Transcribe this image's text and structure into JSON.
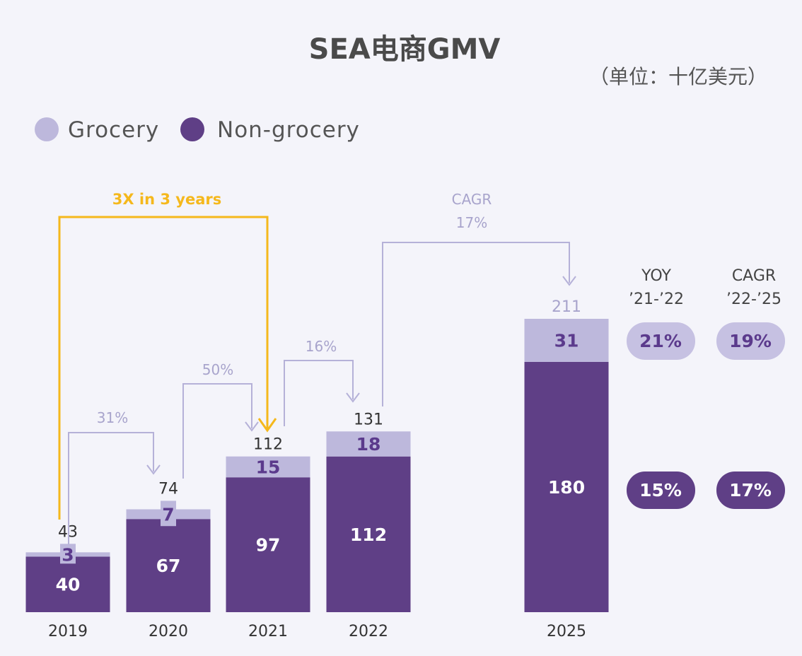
{
  "chart_data": {
    "type": "bar",
    "stacked": true,
    "title": "SEA电商GMV",
    "unit": "（单位：十亿美元）",
    "categories": [
      "2019",
      "2020",
      "2021",
      "2022",
      "2025"
    ],
    "series": [
      {
        "name": "Non-grocery",
        "values": [
          40,
          67,
          97,
          112,
          180
        ],
        "color": "#5f3f86"
      },
      {
        "name": "Grocery",
        "values": [
          3,
          7,
          15,
          18,
          31
        ],
        "color": "#bdb8dc"
      }
    ],
    "totals": [
      "43",
      "74",
      "112",
      "131",
      "211"
    ],
    "ylim": [
      0,
      211
    ],
    "legend": [
      "Grocery",
      "Non-grocery"
    ],
    "annotations": {
      "three_x": "3X in 3 years",
      "growth_2019_2020": "31%",
      "growth_2020_2021": "50%",
      "growth_2021_2022": "16%",
      "cagr_label": "CAGR",
      "cagr_value": "17%"
    },
    "side_table": {
      "yoy_title": "YOY",
      "yoy_period": "’21-’22",
      "cagr_title": "CAGR",
      "cagr_period": "’22-’25",
      "grocery_yoy": "21%",
      "grocery_cagr": "19%",
      "nongrocery_yoy": "15%",
      "nongrocery_cagr": "17%"
    }
  }
}
